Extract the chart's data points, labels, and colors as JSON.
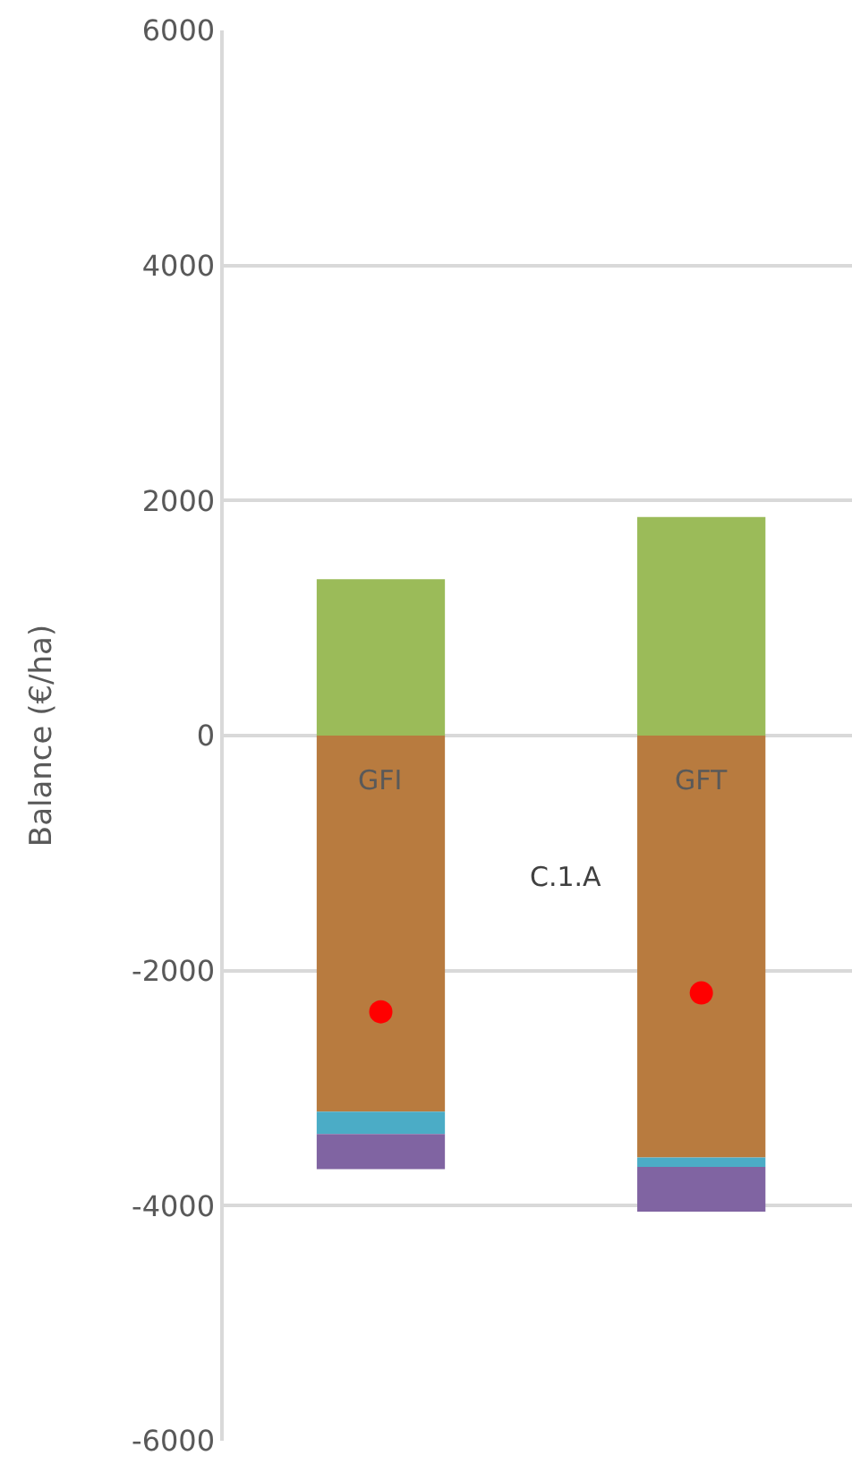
{
  "chart_data": {
    "type": "bar",
    "stacked": true,
    "ylabel": "Balance (€/ha)",
    "categories": [
      "GFI",
      "GFT"
    ],
    "series": [
      {
        "color": "#9bbb59",
        "values": [
          1330,
          1860
        ]
      },
      {
        "color": "#b87b3f",
        "values": [
          -3200,
          -3590
        ]
      },
      {
        "color": "#4bacc6",
        "values": [
          -190,
          -80
        ]
      },
      {
        "color": "#8064a2",
        "values": [
          -300,
          -380
        ]
      },
      {
        "type": "scatter",
        "color": "#ff0000",
        "values": [
          -2350,
          -2190
        ]
      }
    ],
    "annotations": [
      "C.1.A"
    ],
    "ylim": [
      -6000,
      6000
    ],
    "yticks": [
      -6000,
      -4000,
      -2000,
      0,
      2000,
      4000,
      6000
    ],
    "grid": "y",
    "marker": "circle"
  }
}
